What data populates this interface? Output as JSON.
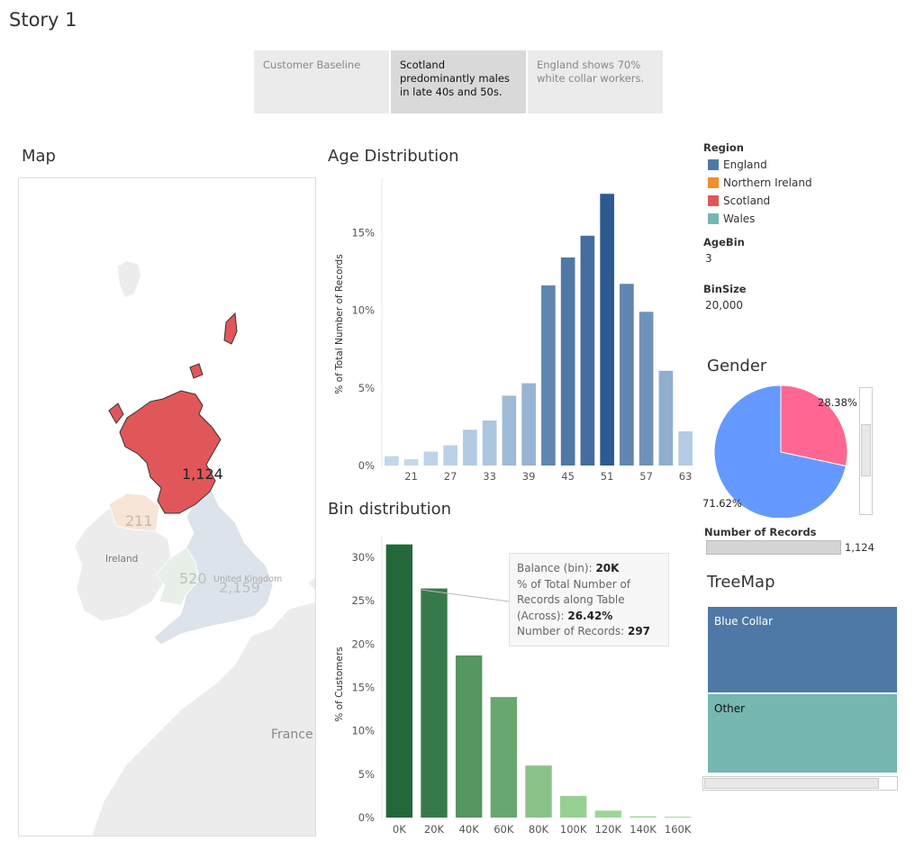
{
  "story": {
    "title": "Story 1",
    "tabs": [
      {
        "label": "Customer Baseline",
        "active": false
      },
      {
        "label": "Scotland predominantly males in late 40s and 50s.",
        "active": true
      },
      {
        "label": "England shows 70% white collar workers.",
        "active": false
      }
    ]
  },
  "map": {
    "title": "Map",
    "labels": {
      "scotland": "1,124",
      "northern_ireland": "211",
      "wales": "520",
      "england": "2,159",
      "ireland": "Ireland",
      "united_kingdom": "United Kingdom",
      "france": "France"
    },
    "colors": {
      "scotland": "#e15759",
      "northern_ireland": "#f6e5d6",
      "wales": "#e8efe8",
      "england": "#dde3ea",
      "land": "#ececec"
    }
  },
  "legend": {
    "region_title": "Region",
    "regions": [
      {
        "name": "England",
        "color": "#4e79a7"
      },
      {
        "name": "Northern Ireland",
        "color": "#f28e2b"
      },
      {
        "name": "Scotland",
        "color": "#e15759"
      },
      {
        "name": "Wales",
        "color": "#76b7b2"
      }
    ],
    "agebin_title": "AgeBin",
    "agebin_value": "3",
    "binsize_title": "BinSize",
    "binsize_value": "20,000"
  },
  "chart_data": [
    {
      "type": "bar",
      "title": "Age Distribution",
      "ylabel": "% of Total Number of Records",
      "xlabel": "",
      "x": [
        18,
        21,
        24,
        27,
        30,
        33,
        36,
        39,
        42,
        45,
        48,
        51,
        54,
        57,
        60,
        63
      ],
      "values": [
        0.6,
        0.4,
        0.9,
        1.3,
        2.3,
        2.9,
        4.5,
        5.3,
        11.6,
        13.4,
        14.8,
        17.5,
        11.7,
        9.9,
        6.1,
        2.2
      ],
      "tick_labels": [
        "21",
        "27",
        "33",
        "39",
        "45",
        "51",
        "57",
        "63"
      ],
      "yticks": [
        "0%",
        "5%",
        "10%",
        "15%"
      ],
      "ylim": [
        0,
        18.5
      ]
    },
    {
      "type": "bar",
      "title": "Bin distribution",
      "ylabel": "% of Customers",
      "xlabel": "",
      "categories": [
        "0K",
        "20K",
        "40K",
        "60K",
        "80K",
        "100K",
        "120K",
        "140K",
        "160K"
      ],
      "values": [
        31.5,
        26.42,
        18.7,
        13.9,
        6.0,
        2.5,
        0.8,
        0.15,
        0.1
      ],
      "yticks": [
        "0%",
        "5%",
        "10%",
        "15%",
        "20%",
        "25%",
        "30%"
      ],
      "ylim": [
        0,
        32.5
      ]
    },
    {
      "type": "pie",
      "title": "Gender",
      "slices": [
        {
          "label": "28.38%",
          "value": 28.38,
          "color": "#ff6692"
        },
        {
          "label": "71.62%",
          "value": 71.62,
          "color": "#6699ff"
        }
      ]
    }
  ],
  "tooltip": {
    "balance_key": "Balance (bin): ",
    "balance_val": "20K",
    "pct_key": "% of Total Number of Records along Table (Across): ",
    "pct_val": "26.42%",
    "records_key": "Number of Records: ",
    "records_val": "297"
  },
  "records": {
    "title": "Number of Records",
    "value": "1,124",
    "fill": 1.0
  },
  "treemap": {
    "title": "TreeMap",
    "cells": [
      {
        "label": "Blue Collar",
        "color": "#4e79a7"
      },
      {
        "label": "Other",
        "color": "#76b7b2"
      }
    ]
  }
}
